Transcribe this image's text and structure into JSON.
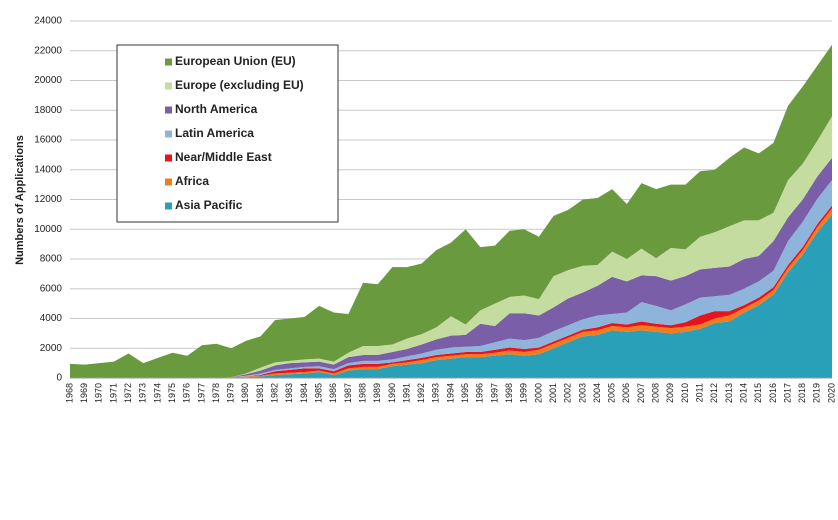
{
  "chart_data": {
    "type": "stacked_area",
    "y_label": "Numbers of Applications",
    "categories": [
      "1968",
      "1969",
      "1970",
      "1971",
      "1972",
      "1973",
      "1974",
      "1975",
      "1976",
      "1977",
      "1978",
      "1979",
      "1980",
      "1981",
      "1982",
      "1983",
      "1984",
      "1985",
      "1986",
      "1987",
      "1988",
      "1989",
      "1990",
      "1991",
      "1992",
      "1993",
      "1994",
      "1995",
      "1996",
      "1997",
      "1998",
      "1999",
      "2000",
      "2001",
      "2002",
      "2003",
      "2004",
      "2005",
      "2006",
      "2007",
      "2008",
      "2009",
      "2010",
      "2011",
      "2012",
      "2013",
      "2014",
      "2015",
      "2016",
      "2017",
      "2018",
      "2019",
      "2020"
    ],
    "series": [
      {
        "name": "European Union (EU)",
        "color": "#6a9a3e",
        "values": [
          950,
          900,
          1000,
          1100,
          1650,
          1000,
          1350,
          1700,
          1500,
          2200,
          2300,
          1950,
          2200,
          2100,
          2850,
          2850,
          2850,
          3550,
          3300,
          2600,
          4250,
          4150,
          5200,
          4800,
          4750,
          5200,
          4950,
          6400,
          4250,
          3900,
          4450,
          4450,
          4200,
          4050,
          4050,
          4450,
          4500,
          4200,
          3700,
          4400,
          4650,
          4250,
          4350,
          4400,
          4200,
          4600,
          4900,
          4500,
          4700,
          5000,
          5200,
          5050,
          4800
        ]
      },
      {
        "name": "Europe (excluding EU)",
        "color": "#c5dca0",
        "values": [
          0,
          0,
          0,
          0,
          0,
          0,
          0,
          0,
          0,
          0,
          0,
          0,
          50,
          200,
          200,
          150,
          200,
          200,
          200,
          300,
          600,
          600,
          500,
          700,
          700,
          800,
          1300,
          700,
          900,
          1500,
          1100,
          1200,
          1100,
          2100,
          1900,
          1800,
          1400,
          1700,
          1500,
          1800,
          1200,
          2200,
          1800,
          2200,
          2400,
          2700,
          2600,
          2400,
          1900,
          2500,
          2400,
          2400,
          2800
        ]
      },
      {
        "name": "North America",
        "color": "#7a5ea8",
        "values": [
          0,
          0,
          0,
          0,
          0,
          0,
          0,
          0,
          0,
          0,
          0,
          0,
          100,
          200,
          300,
          350,
          300,
          300,
          300,
          400,
          400,
          400,
          500,
          500,
          600,
          700,
          800,
          800,
          1500,
          1100,
          1700,
          1800,
          1500,
          1600,
          1800,
          1800,
          2000,
          2500,
          2100,
          1800,
          2000,
          2000,
          1900,
          1900,
          1900,
          1900,
          2000,
          1700,
          2000,
          1600,
          1500,
          1500,
          1500
        ]
      },
      {
        "name": "Latin America",
        "color": "#8fb4dc",
        "values": [
          0,
          0,
          0,
          0,
          0,
          0,
          0,
          0,
          0,
          0,
          0,
          0,
          50,
          100,
          100,
          100,
          100,
          150,
          150,
          150,
          200,
          200,
          200,
          250,
          300,
          350,
          400,
          350,
          400,
          500,
          600,
          600,
          650,
          700,
          700,
          700,
          800,
          600,
          800,
          1300,
          1200,
          1000,
          1200,
          1200,
          1000,
          1100,
          1100,
          1100,
          1100,
          1600,
          1700,
          1700,
          1700
        ]
      },
      {
        "name": "Near/Middle East",
        "color": "#e8141c",
        "values": [
          0,
          0,
          0,
          0,
          0,
          0,
          0,
          0,
          0,
          0,
          0,
          0,
          0,
          50,
          150,
          200,
          250,
          150,
          150,
          200,
          200,
          200,
          100,
          150,
          150,
          150,
          150,
          150,
          150,
          200,
          200,
          200,
          150,
          150,
          150,
          150,
          200,
          200,
          200,
          250,
          200,
          200,
          300,
          600,
          500,
          300,
          200,
          200,
          200,
          200,
          200,
          200,
          200
        ]
      },
      {
        "name": "Africa",
        "color": "#f07c1e",
        "values": [
          0,
          0,
          0,
          0,
          0,
          0,
          0,
          0,
          0,
          0,
          0,
          50,
          50,
          50,
          100,
          100,
          100,
          100,
          100,
          150,
          150,
          150,
          150,
          150,
          200,
          200,
          200,
          200,
          200,
          200,
          250,
          250,
          300,
          300,
          300,
          300,
          300,
          300,
          300,
          350,
          350,
          350,
          350,
          300,
          300,
          400,
          300,
          300,
          300,
          300,
          300,
          350,
          400
        ]
      },
      {
        "name": "Asia Pacific",
        "color": "#2aa0b8",
        "values": [
          0,
          0,
          0,
          0,
          0,
          0,
          0,
          0,
          0,
          0,
          0,
          0,
          50,
          100,
          200,
          250,
          300,
          400,
          200,
          500,
          600,
          600,
          800,
          900,
          1000,
          1200,
          1300,
          1400,
          1400,
          1500,
          1600,
          1500,
          1600,
          2000,
          2400,
          2800,
          2900,
          3200,
          3100,
          3200,
          3100,
          3000,
          3100,
          3300,
          3700,
          3800,
          4400,
          4900,
          5600,
          7100,
          8300,
          9800,
          11000
        ]
      }
    ],
    "ylim": [
      0,
      24000
    ],
    "yticks": [
      0,
      2000,
      4000,
      6000,
      8000,
      10000,
      12000,
      14000,
      16000,
      18000,
      20000,
      22000,
      24000
    ],
    "grid": true,
    "legend": "upper left"
  }
}
